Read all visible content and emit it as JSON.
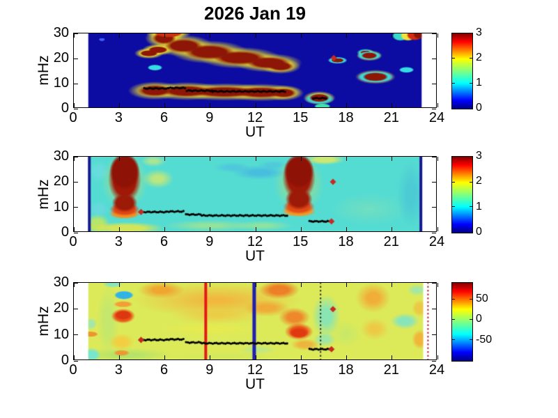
{
  "title": "2026 Jan 19",
  "axis": {
    "xlabel": "UT",
    "ylabel": "mHz",
    "xlim": [
      0,
      24
    ],
    "ylim": [
      0,
      30
    ],
    "xticks": [
      0,
      3,
      6,
      9,
      12,
      15,
      18,
      21,
      24
    ],
    "yticks": [
      0,
      10,
      20,
      30
    ]
  },
  "colormap_gradient": [
    [
      "#800000",
      0
    ],
    [
      "#ff0000",
      0.11
    ],
    [
      "#ffff00",
      0.34
    ],
    [
      "#80ff80",
      0.5
    ],
    [
      "#00ffff",
      0.66
    ],
    [
      "#0000ff",
      0.89
    ],
    [
      "#000080",
      1
    ]
  ],
  "chart_data": [
    {
      "id": "panel-1",
      "type": "heatmap",
      "background": "#0c0ca2",
      "data_extent": [
        1,
        23
      ],
      "colorbar": {
        "lim": [
          0,
          3
        ],
        "ticks": [
          3,
          2,
          1,
          0
        ]
      },
      "blobs": [
        [
          6.0,
          27.8,
          0.75,
          2.2,
          "#8e1607",
          3,
          "#ecdf2e"
        ],
        [
          7.3,
          24.8,
          1.2,
          2.6,
          "#8e1607",
          3,
          "#ecdf2e"
        ],
        [
          9.0,
          22.3,
          1.6,
          2.8,
          "#8e1607",
          3,
          "#ecdf2e"
        ],
        [
          11.0,
          20.0,
          1.7,
          2.6,
          "#8e1607",
          3,
          "#ecdf2e"
        ],
        [
          12.9,
          18.0,
          1.4,
          2.2,
          "#8e1607",
          3,
          "#ecdf2e"
        ],
        [
          13.7,
          16.6,
          0.8,
          1.6,
          "#8e1607",
          3,
          "#ecdf2e"
        ],
        [
          5.0,
          21.8,
          0.55,
          1.0,
          "#8e1607",
          2,
          "#ecdf2e"
        ],
        [
          5.6,
          23.2,
          0.6,
          1.1,
          "#8e1607",
          2,
          "#ecdf2e"
        ],
        [
          6.3,
          29.8,
          0.9,
          1.4,
          "#c83214",
          2,
          "#ecdf2e"
        ],
        [
          5.4,
          6.9,
          1.1,
          2.1,
          "#8e1607",
          3,
          "#ecdf2e"
        ],
        [
          7.5,
          6.7,
          1.6,
          2.1,
          "#8e1607",
          3,
          "#ecdf2e"
        ],
        [
          10.0,
          6.4,
          2.2,
          2.0,
          "#8e1607",
          3,
          "#ecdf2e"
        ],
        [
          12.4,
          6.2,
          1.7,
          2.0,
          "#8e1607",
          3,
          "#ecdf2e"
        ],
        [
          13.9,
          6.0,
          0.8,
          1.7,
          "#8e1607",
          3,
          "#ecdf2e"
        ],
        [
          5.4,
          16.1,
          0.45,
          0.9,
          "#35dce4",
          2,
          null
        ],
        [
          16.25,
          3.6,
          0.95,
          1.9,
          "#3ad8d8",
          3,
          null
        ],
        [
          16.25,
          4.0,
          0.62,
          1.4,
          "#8e1607",
          2,
          "#ecdf2e"
        ],
        [
          16.45,
          0.7,
          0.5,
          0.8,
          "#40dfae",
          2,
          null
        ],
        [
          17.45,
          19.0,
          0.6,
          1.1,
          "#3ad8d8",
          2,
          null
        ],
        [
          17.45,
          19.0,
          0.36,
          0.6,
          "#8e1607",
          1,
          null
        ],
        [
          19.3,
          22.1,
          0.3,
          0.5,
          "#8e1607",
          1,
          "#3ad8d8"
        ],
        [
          19.55,
          20.9,
          0.75,
          1.4,
          "#3ad8d8",
          2,
          null
        ],
        [
          19.55,
          20.9,
          0.48,
          1.0,
          "#8e1607",
          2,
          "#e8d83a"
        ],
        [
          19.95,
          12.4,
          1.15,
          2.0,
          "#35dce0",
          2,
          null
        ],
        [
          19.95,
          12.4,
          0.8,
          1.5,
          "#8e1607",
          2,
          "#e8d83a"
        ],
        [
          22.0,
          15.2,
          0.45,
          0.9,
          "#35dce4",
          2,
          null
        ],
        [
          21.6,
          28.8,
          0.5,
          1.8,
          "#3ad8c8",
          2,
          null
        ],
        [
          22.1,
          28.9,
          0.45,
          1.9,
          "#eee23c",
          2,
          null
        ],
        [
          22.55,
          29.1,
          0.5,
          1.9,
          "#d42c10",
          2,
          null
        ],
        [
          22.8,
          29.4,
          0.3,
          1.6,
          "#8e1607",
          2,
          null
        ],
        [
          1.9,
          27.3,
          0.15,
          0.35,
          "#4060ff",
          1,
          null
        ]
      ],
      "vlines": [],
      "track_segments": [
        [
          4.7,
          6.3,
          7.8
        ],
        [
          6.3,
          7.4,
          8.0
        ],
        [
          7.5,
          9.2,
          6.9
        ],
        [
          9.2,
          14.05,
          6.6
        ],
        [
          15.85,
          16.75,
          3.9
        ]
      ],
      "diamond_markers": [
        [
          17.2,
          19.9
        ]
      ]
    },
    {
      "id": "panel-2",
      "type": "heatmap",
      "background": "#55dcd2",
      "data_extent": [
        1,
        23
      ],
      "colorbar": {
        "lim": [
          0,
          3
        ],
        "ticks": [
          3,
          2,
          1,
          0
        ]
      },
      "blobs": [
        [
          1.6,
          3,
          0.8,
          4,
          "rgba(205,232,80,0.8)",
          5,
          null
        ],
        [
          1.7,
          9,
          0.6,
          3,
          "rgba(120,215,230,0.5)",
          5,
          null
        ],
        [
          1.7,
          24,
          0.6,
          4,
          "rgba(130,220,235,0.4)",
          5,
          null
        ],
        [
          3.5,
          1.5,
          2.5,
          2.2,
          "rgba(235,230,70,0.85)",
          5,
          null
        ],
        [
          3.4,
          20,
          1.5,
          11,
          "rgba(240,220,60,0.55)",
          7,
          null
        ],
        [
          5.6,
          21,
          1.0,
          3.5,
          "rgba(220,235,100,0.75)",
          6,
          null
        ],
        [
          5.3,
          28,
          0.8,
          2,
          "rgba(225,235,110,0.6)",
          6,
          null
        ],
        [
          9,
          2.5,
          3,
          2,
          "rgba(190,232,120,0.6)",
          7,
          null
        ],
        [
          12.5,
          2.5,
          2,
          1.8,
          "rgba(200,235,110,0.5)",
          7,
          null
        ],
        [
          12.3,
          23.5,
          1.8,
          2.6,
          "rgba(60,160,235,0.5)",
          6,
          null
        ],
        [
          10.5,
          25.5,
          1.2,
          1.8,
          "rgba(70,170,235,0.4)",
          6,
          null
        ],
        [
          13.2,
          26.5,
          1.0,
          1.5,
          "rgba(70,170,235,0.35)",
          6,
          null
        ],
        [
          16.6,
          28.6,
          1.3,
          1.8,
          "rgba(235,235,90,0.8)",
          5,
          null
        ],
        [
          19.5,
          9,
          2.5,
          6,
          "rgba(150,225,170,0.4)",
          8,
          null
        ],
        [
          22.3,
          15,
          0.9,
          13,
          "rgba(70,190,215,0.55)",
          6,
          null
        ],
        [
          14.9,
          19,
          1.6,
          11,
          "rgba(240,220,60,0.5)",
          7,
          null
        ],
        [
          3.4,
          7.2,
          1.0,
          1.8,
          "#f09024",
          3,
          null
        ],
        [
          3.4,
          9,
          0.95,
          2.4,
          "#e04414",
          3,
          null
        ],
        [
          3.4,
          21,
          1.05,
          9.5,
          "#a01808",
          3,
          null
        ],
        [
          3.4,
          24,
          0.95,
          7,
          "#8e1205",
          2,
          null
        ],
        [
          3.4,
          11.5,
          0.8,
          3.5,
          "#9c1a08",
          3,
          null
        ],
        [
          14.9,
          8.2,
          1.1,
          2.0,
          "#f09a28",
          3,
          null
        ],
        [
          14.9,
          10,
          1.0,
          2.7,
          "#e34a14",
          3,
          null
        ],
        [
          14.9,
          21.5,
          1.05,
          9,
          "#a01808",
          3,
          null
        ],
        [
          14.9,
          24,
          0.95,
          6.5,
          "#8e1205",
          2,
          null
        ],
        [
          14.9,
          13,
          0.85,
          4,
          "#9c1a08",
          3,
          null
        ]
      ],
      "vlines": [
        [
          1.07,
          "#181890",
          4,
          false
        ],
        [
          22.95,
          "#181890",
          4,
          false
        ]
      ],
      "track_segments": [
        [
          4.55,
          6.2,
          7.9
        ],
        [
          6.2,
          7.35,
          8.1
        ],
        [
          7.45,
          8.5,
          6.9
        ],
        [
          8.5,
          14.2,
          6.5
        ],
        [
          15.6,
          17.0,
          4.2
        ]
      ],
      "diamond_markers": [
        [
          4.48,
          7.9
        ],
        [
          17.05,
          4.2
        ],
        [
          17.15,
          19.8
        ]
      ]
    },
    {
      "id": "panel-3",
      "type": "heatmap",
      "background": "#dcea5a",
      "data_extent": [
        1,
        23.1
      ],
      "colorbar": {
        "lim": [
          -100,
          90
        ],
        "ticks": [
          50,
          0,
          -50
        ]
      },
      "blobs": [
        [
          3.5,
          2,
          3,
          2.5,
          "rgba(170,225,110,0.8)",
          7,
          null
        ],
        [
          1.2,
          2,
          0.6,
          2.5,
          "rgba(110,230,215,0.9)",
          4,
          null
        ],
        [
          1.15,
          14,
          0.4,
          2,
          "rgba(130,230,215,0.6)",
          4,
          null
        ],
        [
          2.3,
          15,
          0.7,
          14,
          "rgba(180,230,120,0.6)",
          6,
          null
        ],
        [
          1.15,
          10,
          0.45,
          0.8,
          "rgba(240,140,40,0.9)",
          2,
          null
        ],
        [
          2.6,
          29.3,
          0.6,
          1.2,
          "rgba(120,228,210,0.8)",
          4,
          null
        ],
        [
          9.5,
          23,
          5.5,
          6.5,
          "rgba(248,168,52,0.75)",
          9,
          null
        ],
        [
          9.5,
          17,
          3,
          3,
          "rgba(246,190,60,0.6)",
          8,
          null
        ],
        [
          9,
          12,
          3.5,
          2.5,
          "rgba(240,235,70,0.6)",
          8,
          null
        ],
        [
          10,
          1.5,
          4,
          1.5,
          "rgba(205,232,95,0.6)",
          7,
          null
        ],
        [
          12.2,
          4,
          1.2,
          1.5,
          "rgba(160,230,180,0.45)",
          6,
          null
        ],
        [
          5.8,
          27,
          1.5,
          3,
          "rgba(245,150,40,0.8)",
          6,
          null
        ],
        [
          12.8,
          20,
          1.5,
          3,
          "rgba(245,150,45,0.7)",
          6,
          null
        ],
        [
          13.6,
          27,
          1.3,
          3.2,
          "rgba(240,110,30,0.85)",
          5,
          null
        ],
        [
          14.6,
          16.5,
          1.0,
          3.5,
          "rgba(242,120,35,0.85)",
          5,
          null
        ],
        [
          15.3,
          6,
          0.9,
          2,
          "rgba(244,160,50,0.7)",
          5,
          null
        ],
        [
          3.2,
          7,
          0.8,
          3,
          "rgba(248,200,60,0.8)",
          5,
          null
        ],
        [
          3.2,
          2.8,
          0.5,
          0.9,
          "rgba(245,140,40,0.85)",
          3,
          null
        ],
        [
          3.3,
          21.5,
          0.6,
          1.0,
          "rgba(245,150,50,0.9)",
          3,
          null
        ],
        [
          3.3,
          17,
          0.75,
          2.6,
          "#ea5518",
          3,
          null
        ],
        [
          3.3,
          17.3,
          0.5,
          1.5,
          "#dc3810",
          2,
          null
        ],
        [
          3.35,
          25,
          0.6,
          1.4,
          "#30b4e8",
          2,
          null
        ],
        [
          14.9,
          11,
          0.9,
          3,
          "#ec5518",
          4,
          null
        ],
        [
          14.9,
          10.5,
          0.6,
          1.8,
          "#e03810",
          3,
          null
        ],
        [
          16.7,
          17,
          0.9,
          8,
          "rgba(110,228,208,0.75)",
          6,
          null
        ],
        [
          16.6,
          8,
          0.7,
          2.5,
          "rgba(120,230,210,0.6)",
          5,
          null
        ],
        [
          18,
          10,
          1,
          5,
          "rgba(190,232,110,0.6)",
          7,
          null
        ],
        [
          19.8,
          24,
          1.1,
          5.5,
          "rgba(246,160,48,0.8)",
          6,
          null
        ],
        [
          19.9,
          12,
          0.9,
          4,
          "rgba(247,185,60,0.65)",
          6,
          null
        ],
        [
          21.9,
          15,
          0.9,
          2.8,
          "rgba(115,228,210,0.8)",
          5,
          null
        ],
        [
          22.7,
          27,
          0.6,
          2,
          "rgba(130,230,212,0.6)",
          5,
          null
        ],
        [
          22.9,
          8,
          0.5,
          3.5,
          "rgba(246,170,50,0.8)",
          4,
          null
        ],
        [
          22.9,
          20,
          0.5,
          3,
          "rgba(246,180,55,0.6)",
          4,
          null
        ]
      ],
      "vlines": [
        [
          8.75,
          "#e41818",
          4,
          false
        ],
        [
          11.95,
          "#2020b0",
          5,
          false
        ],
        [
          16.33,
          "#333333",
          2,
          true
        ],
        [
          23.42,
          "#b62a2a",
          2,
          true
        ]
      ],
      "track_segments": [
        [
          4.55,
          6.2,
          7.8
        ],
        [
          6.2,
          7.35,
          8.0
        ],
        [
          7.45,
          8.5,
          6.8
        ],
        [
          8.5,
          14.2,
          6.5
        ],
        [
          15.6,
          17.0,
          4.2
        ]
      ],
      "diamond_markers": [
        [
          4.48,
          7.8
        ],
        [
          17.05,
          4.2
        ],
        [
          17.15,
          19.6
        ]
      ]
    }
  ]
}
